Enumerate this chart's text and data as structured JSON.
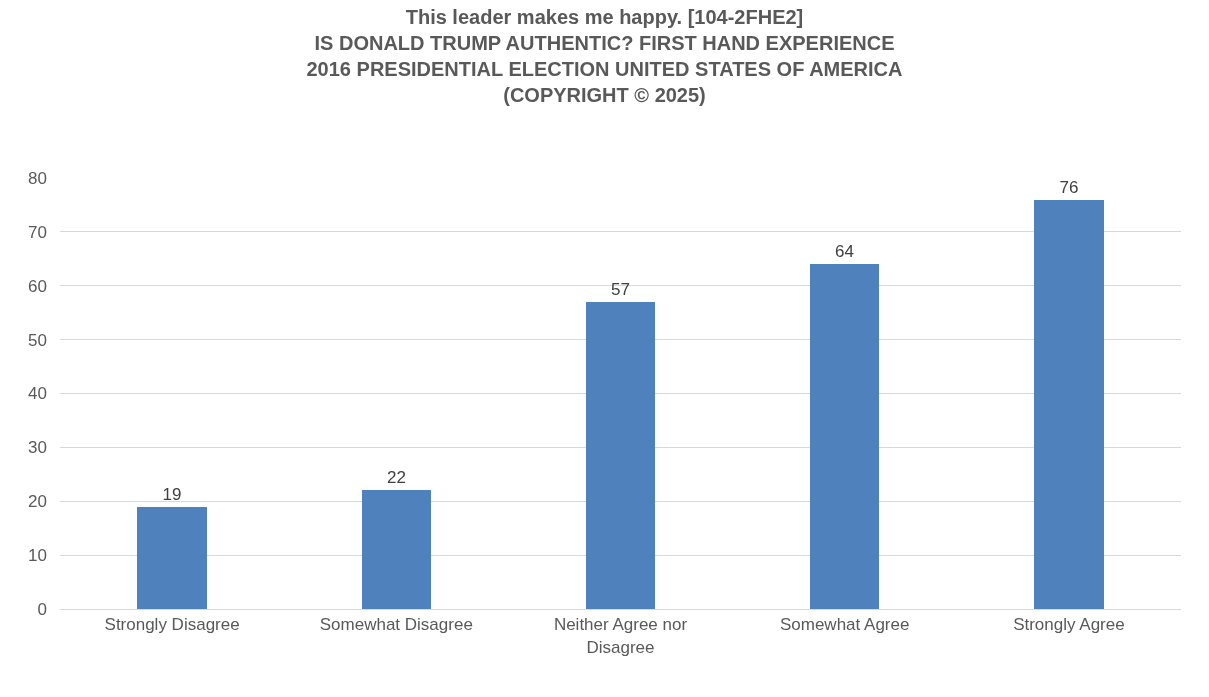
{
  "chart_data": {
    "type": "bar",
    "title": "This leader makes me happy. [104-2FHE2]\nIS DONALD TRUMP AUTHENTIC? FIRST HAND EXPERIENCE\n2016 PRESIDENTIAL ELECTION UNITED STATES OF AMERICA\n(COPYRIGHT © 2025)",
    "categories": [
      "Strongly Disagree",
      "Somewhat Disagree",
      "Neither Agree nor Disagree",
      "Somewhat Agree",
      "Strongly Agree"
    ],
    "values": [
      19,
      22,
      57,
      64,
      76
    ],
    "color": "#4f81bd",
    "ylim": [
      0,
      80
    ],
    "yticks": [
      0,
      10,
      20,
      30,
      40,
      50,
      60,
      70,
      80
    ],
    "grid": "y",
    "data_labels": true
  }
}
